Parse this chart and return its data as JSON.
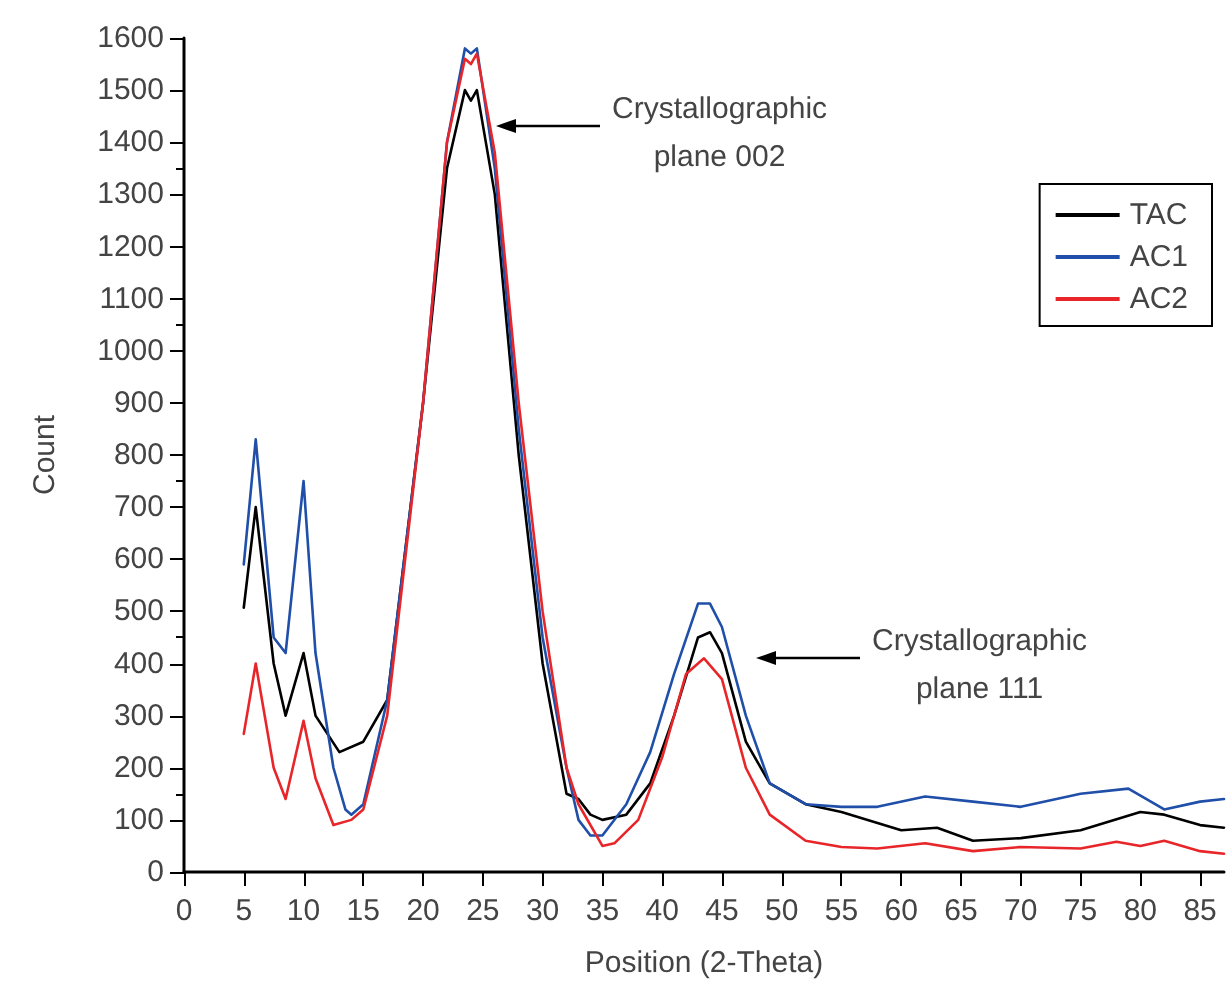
{
  "chart_data": {
    "type": "line",
    "xlabel": "Position (2-Theta)",
    "ylabel": "Count",
    "xlim": [
      0,
      87
    ],
    "xticks": [
      0,
      5,
      10,
      15,
      20,
      25,
      30,
      35,
      40,
      45,
      50,
      55,
      60,
      65,
      70,
      75,
      80,
      85
    ],
    "ylim": [
      0,
      1600
    ],
    "yticks": [
      0,
      100,
      200,
      300,
      400,
      500,
      600,
      700,
      800,
      900,
      1000,
      1100,
      1200,
      1300,
      1400,
      1500,
      1600
    ],
    "grid": false,
    "legend": "top right",
    "marker": "none",
    "line_style": "solid",
    "annotations": [
      "Crystallographic\nplane 002",
      "Crystallographic\nplane 111"
    ],
    "series": [
      {
        "name": "TAC",
        "color": "#000000",
        "x": [
          5,
          6,
          7.5,
          8.5,
          10,
          11,
          13,
          15,
          17,
          20,
          22,
          23.5,
          24,
          24.5,
          26,
          28,
          30,
          32,
          33,
          34,
          35,
          37,
          39,
          41,
          43,
          44,
          45,
          47,
          49,
          52,
          55,
          60,
          63,
          66,
          70,
          75,
          80,
          82,
          85,
          87
        ],
        "values": [
          507,
          700,
          400,
          300,
          420,
          300,
          230,
          250,
          330,
          900,
          1350,
          1500,
          1480,
          1500,
          1300,
          800,
          400,
          150,
          140,
          110,
          100,
          110,
          170,
          300,
          450,
          460,
          420,
          250,
          170,
          130,
          115,
          80,
          85,
          60,
          65,
          80,
          115,
          110,
          90,
          85
        ]
      },
      {
        "name": "AC1",
        "color": "#1f4fa8",
        "x": [
          5,
          6,
          7.5,
          8.5,
          10,
          11,
          12.5,
          13.5,
          14,
          15,
          17,
          20,
          22,
          23.5,
          24,
          24.5,
          26,
          28,
          30,
          32,
          33,
          34,
          35,
          37,
          39,
          41,
          43,
          44,
          45,
          47,
          49,
          52,
          55,
          58,
          62,
          66,
          70,
          75,
          79,
          82,
          85,
          87
        ],
        "values": [
          590,
          830,
          450,
          420,
          750,
          420,
          200,
          120,
          110,
          130,
          330,
          900,
          1400,
          1580,
          1570,
          1580,
          1350,
          850,
          450,
          200,
          100,
          70,
          70,
          130,
          230,
          380,
          515,
          515,
          470,
          300,
          170,
          130,
          125,
          125,
          145,
          135,
          125,
          150,
          160,
          120,
          135,
          140
        ]
      },
      {
        "name": "AC2",
        "color": "#e8262a",
        "x": [
          5,
          6,
          7.5,
          8.5,
          10,
          11,
          12.5,
          14,
          15,
          17,
          20,
          22,
          23.5,
          24,
          24.5,
          26,
          28,
          30,
          32,
          33,
          35,
          36,
          38,
          40,
          42,
          43.5,
          45,
          47,
          49,
          52,
          55,
          58,
          62,
          66,
          70,
          75,
          78,
          80,
          82,
          85,
          87
        ],
        "values": [
          265,
          400,
          200,
          140,
          290,
          180,
          90,
          100,
          120,
          300,
          900,
          1400,
          1560,
          1550,
          1570,
          1380,
          900,
          500,
          200,
          130,
          50,
          55,
          100,
          220,
          380,
          410,
          370,
          200,
          110,
          60,
          48,
          45,
          55,
          40,
          48,
          45,
          58,
          50,
          60,
          40,
          35
        ]
      }
    ]
  }
}
